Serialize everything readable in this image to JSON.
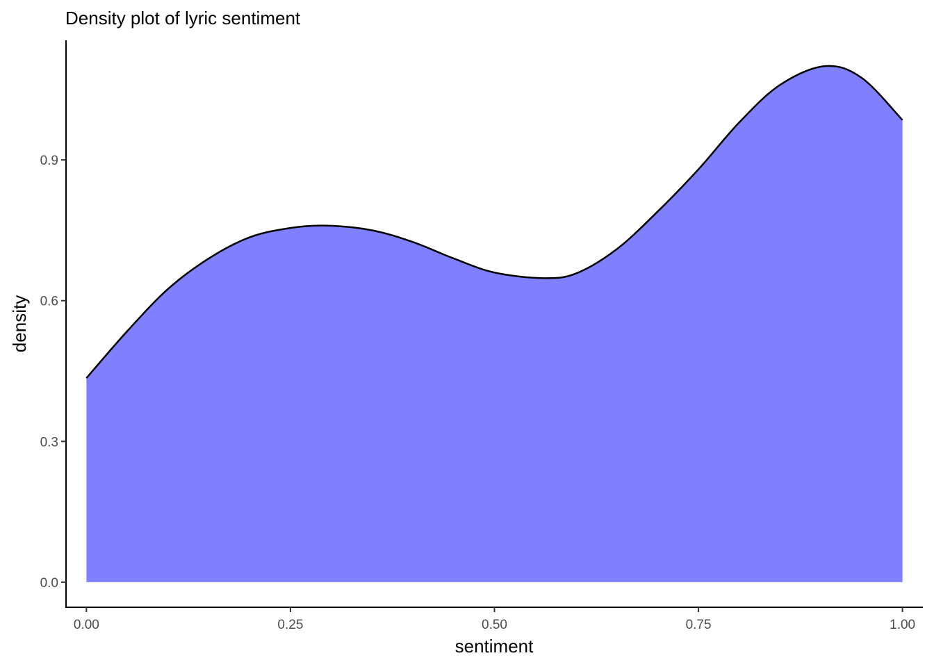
{
  "chart_data": {
    "type": "area",
    "title": "Density plot of lyric sentiment",
    "xlabel": "sentiment",
    "ylabel": "density",
    "xlim": [
      -0.025,
      1.025
    ],
    "ylim": [
      -0.055,
      1.155
    ],
    "x_ticks": [
      0,
      0.25,
      0.5,
      0.75,
      1
    ],
    "x_tick_labels": [
      "0.00",
      "0.25",
      "0.50",
      "0.75",
      "1.00"
    ],
    "y_ticks": [
      0,
      0.3,
      0.6,
      0.9
    ],
    "y_tick_labels": [
      "0.0",
      "0.3",
      "0.6",
      "0.9"
    ],
    "grid": false,
    "fill_color": "#8080ff",
    "line_color": "#000000",
    "series": [
      {
        "x": [
          0,
          0.05,
          0.1,
          0.15,
          0.2,
          0.25,
          0.295,
          0.35,
          0.4,
          0.45,
          0.5,
          0.56,
          0.6,
          0.65,
          0.7,
          0.75,
          0.8,
          0.85,
          0.905,
          0.95,
          1.0
        ],
        "y": [
          0.435,
          0.535,
          0.625,
          0.69,
          0.735,
          0.755,
          0.76,
          0.75,
          0.725,
          0.69,
          0.66,
          0.648,
          0.658,
          0.71,
          0.79,
          0.88,
          0.98,
          1.06,
          1.1,
          1.075,
          0.985
        ]
      }
    ]
  }
}
